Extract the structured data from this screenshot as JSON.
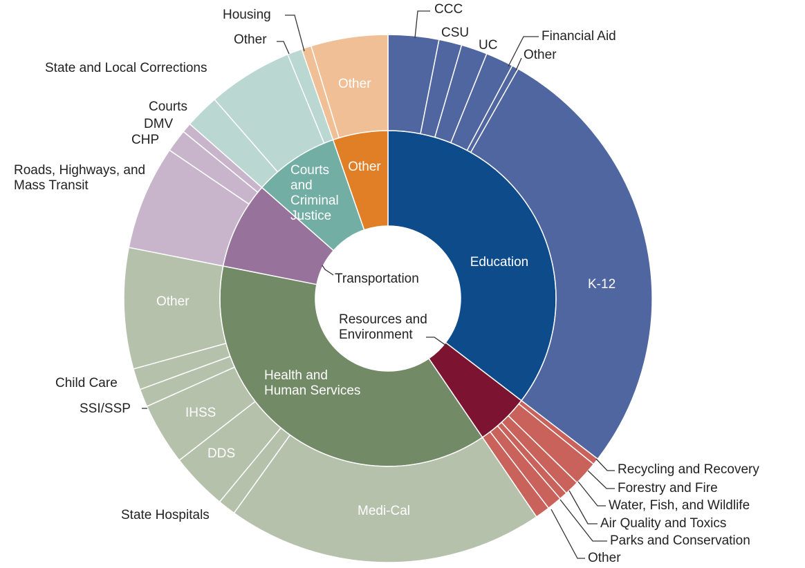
{
  "chart_data": {
    "type": "sunburst",
    "categories": [
      "Education",
      "Resources and Environment",
      "Health and Human Services",
      "Transportation",
      "Courts and Criminal Justice",
      "Other"
    ],
    "values": [
      35.4,
      5.1,
      37.6,
      8.4,
      8.2,
      5.3
    ],
    "colors": [
      "#0e4b8b",
      "#7c1331",
      "#738a67",
      "#97739c",
      "#73aea4",
      "#e17f27"
    ],
    "children": [
      {
        "categories": [
          "CCC",
          "CSU",
          "UC",
          "Financial Aid",
          "Other",
          "K-12"
        ],
        "values": [
          3.1,
          1.4,
          1.6,
          1.7,
          0.4,
          27.2
        ],
        "color": "#5066a0"
      },
      {
        "categories": [
          "Recycling and Recovery",
          "Forestry and Fire",
          "Water, Fish, and Wildlife",
          "Air Quality and Toxics",
          "Parks and Conservation",
          "Other"
        ],
        "values": [
          0.4,
          1.5,
          0.9,
          0.5,
          0.9,
          0.9
        ],
        "color": "#c9625a"
      },
      {
        "categories": [
          "Medi-Cal",
          "State Hospitals",
          "DDS",
          "IHSS",
          "SSI/SSP",
          "Child Care",
          "Other"
        ],
        "values": [
          19.4,
          1.1,
          3.5,
          3.8,
          1.1,
          1.3,
          7.4
        ],
        "color": "#b6c1ac"
      },
      {
        "categories": [
          "Roads, Highways, and Mass Transit",
          "CHP",
          "DMV"
        ],
        "values": [
          6.4,
          1.4,
          0.6
        ],
        "color": "#c8b5cc"
      },
      {
        "categories": [
          "Courts",
          "State and Local Corrections",
          "Other"
        ],
        "values": [
          2.1,
          5.2,
          0.9
        ],
        "color": "#bad7d1"
      },
      {
        "categories": [
          "Housing",
          "Other"
        ],
        "values": [
          0.6,
          4.7
        ],
        "color": "#f1bf95"
      }
    ]
  }
}
